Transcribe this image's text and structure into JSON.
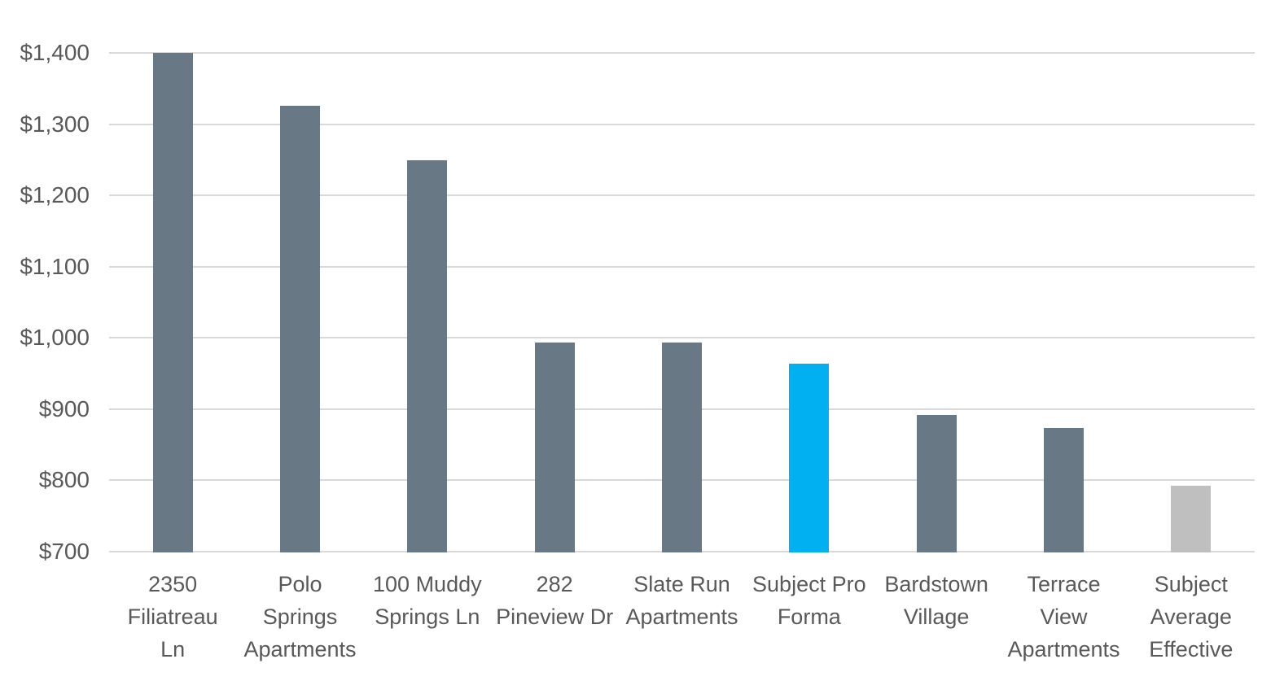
{
  "chart_data": {
    "type": "bar",
    "categories": [
      "2350 Filiatreau Ln",
      "Polo Springs Apartments",
      "100 Muddy Springs Ln",
      "282 Pineview Dr",
      "Slate Run Apartments",
      "Subject Pro Forma",
      "Bardstown Village",
      "Terrace View Apartments",
      "Subject Average Effective"
    ],
    "category_display_labels": [
      "2350\nFiliatreau\nLn",
      "Polo\nSprings\nApartments",
      "100 Muddy\nSprings Ln",
      "282\nPineview Dr",
      "Slate Run\nApartments",
      "Subject Pro\nForma",
      "Bardstown\nVillage",
      "Terrace\nView\nApartments",
      "Subject\nAverage\nEffective"
    ],
    "values": [
      1400,
      1326,
      1249,
      994,
      993,
      964,
      892,
      874,
      792
    ],
    "ylim": [
      700,
      1400
    ],
    "yticks": [
      700,
      800,
      900,
      1000,
      1100,
      1200,
      1300,
      1400
    ],
    "ytick_labels": [
      "$700",
      "$800",
      "$900",
      "$1,000",
      "$1,100",
      "$1,200",
      "$1,300",
      "$1,400"
    ],
    "xlabel": "",
    "ylabel": "",
    "grid": true,
    "legend_position": "none",
    "highlighted_category": "Subject Pro Forma",
    "muted_category": "Subject Average Effective",
    "bar_colors": [
      "#697885",
      "#697885",
      "#697885",
      "#697885",
      "#697885",
      "#00B0F0",
      "#697885",
      "#697885",
      "#BFBFBF"
    ]
  },
  "style": {
    "default_bar_color": "#697885",
    "highlight_bar_color": "#00B0F0",
    "muted_bar_color": "#BFBFBF",
    "gridline_color": "#D9D9D9",
    "axis_text_color": "#595959",
    "background_color": "#FFFFFF"
  }
}
